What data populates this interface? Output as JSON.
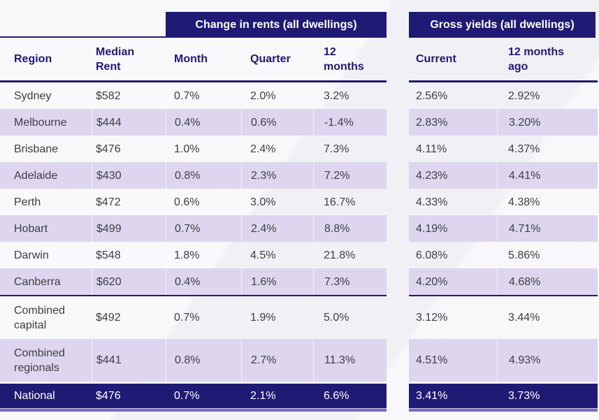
{
  "chart_data": {
    "type": "table",
    "column_groups": [
      {
        "label": "",
        "columns": [
          "Region",
          "Median Rent"
        ]
      },
      {
        "label": "Change in rents (all dwellings)",
        "columns": [
          "Month",
          "Quarter",
          "12 months"
        ]
      },
      {
        "label": "Gross yields (all dwellings)",
        "columns": [
          "Current",
          "12 months ago"
        ]
      }
    ],
    "columns": [
      "Region",
      "Median Rent",
      "Month",
      "Quarter",
      "12 months",
      "Current",
      "12 months ago"
    ],
    "rows": [
      [
        "Sydney",
        "$582",
        "0.7%",
        "2.0%",
        "3.2%",
        "2.56%",
        "2.92%"
      ],
      [
        "Melbourne",
        "$444",
        "0.4%",
        "0.6%",
        "-1.4%",
        "2.83%",
        "3.20%"
      ],
      [
        "Brisbane",
        "$476",
        "1.0%",
        "2.4%",
        "7.3%",
        "4.11%",
        "4.37%"
      ],
      [
        "Adelaide",
        "$430",
        "0.8%",
        "2.3%",
        "7.2%",
        "4.23%",
        "4.41%"
      ],
      [
        "Perth",
        "$472",
        "0.6%",
        "3.0%",
        "16.7%",
        "4.33%",
        "4.38%"
      ],
      [
        "Hobart",
        "$499",
        "0.7%",
        "2.4%",
        "8.8%",
        "4.19%",
        "4.71%"
      ],
      [
        "Darwin",
        "$548",
        "1.8%",
        "4.5%",
        "21.8%",
        "6.08%",
        "5.86%"
      ],
      [
        "Canberra",
        "$620",
        "0.4%",
        "1.6%",
        "7.3%",
        "4.20%",
        "4.68%"
      ],
      [
        "Combined capital",
        "$492",
        "0.7%",
        "1.9%",
        "5.0%",
        "3.12%",
        "3.44%"
      ],
      [
        "Combined regionals",
        "$441",
        "0.8%",
        "2.7%",
        "11.3%",
        "4.51%",
        "4.93%"
      ],
      [
        "National",
        "$476",
        "0.7%",
        "2.1%",
        "6.6%",
        "3.41%",
        "3.73%"
      ]
    ]
  },
  "colors": {
    "navy": "#1f1a73",
    "stripe": "#ddd6ee",
    "accent_underline": "#7a68c8",
    "background": "#f1f0f4",
    "body_text": "#3f3e44",
    "total_row_text": "#ffffff"
  }
}
